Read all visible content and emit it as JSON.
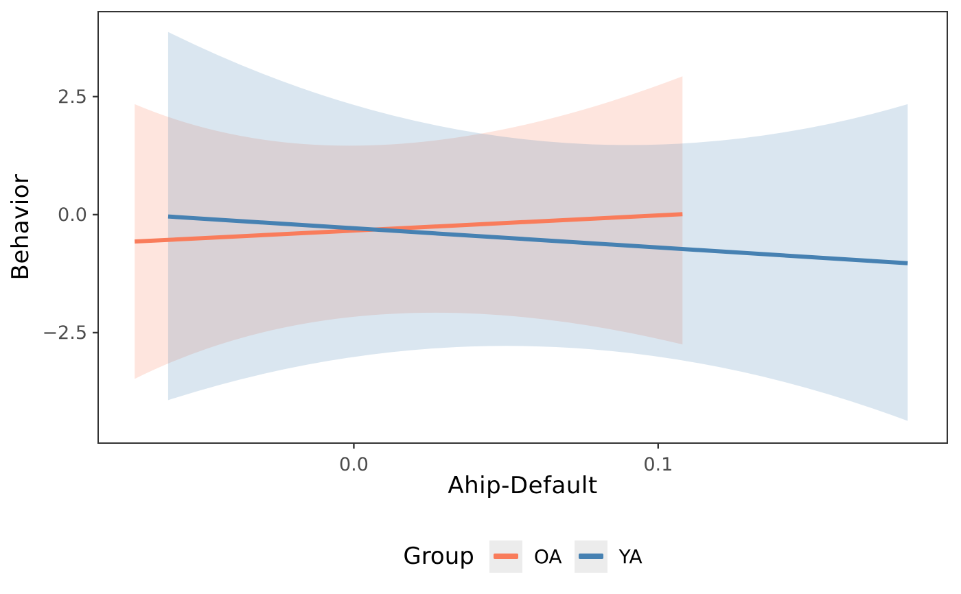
{
  "figure": {
    "background": "#FFFFFF",
    "panel_border_color": "#333333",
    "tick_color": "#333333",
    "tick_label_color": "#4D4D4D",
    "axis_title_color": "#000000",
    "legend_key_fill": "#ECECEC"
  },
  "chart_data": {
    "type": "line",
    "title": "",
    "xlabel": "Ahip-Default",
    "ylabel": "Behavior",
    "xlim": [
      -0.084,
      0.195
    ],
    "ylim": [
      -4.84,
      4.3
    ],
    "grid": false,
    "legend_position": "bottom",
    "xticks": {
      "values": [
        0.0,
        0.1
      ],
      "labels": [
        "0.0",
        "0.1"
      ]
    },
    "yticks": {
      "values": [
        -2.5,
        0.0,
        2.5
      ],
      "labels": [
        "−2.5",
        "0.0",
        "2.5"
      ]
    },
    "series": [
      {
        "name": "OA",
        "color": "#F97C5B",
        "fill_opacity": 0.2,
        "line": {
          "x": [
            -0.072,
            0.108
          ],
          "y": [
            -0.57,
            0.01
          ]
        },
        "ribbon": {
          "x": [
            -0.072,
            0.01,
            0.108
          ],
          "top": [
            2.34,
            1.48,
            2.93
          ],
          "bottom": [
            -3.48,
            -2.11,
            -2.75
          ]
        }
      },
      {
        "name": "YA",
        "color": "#4681B2",
        "fill_opacity": 0.2,
        "line": {
          "x": [
            -0.061,
            0.182
          ],
          "y": [
            -0.04,
            -1.03
          ]
        },
        "ribbon": {
          "x": [
            -0.061,
            0.06,
            0.182
          ],
          "top": [
            3.87,
            1.57,
            2.34
          ],
          "bottom": [
            -3.93,
            -2.79,
            -4.37
          ]
        }
      }
    ]
  },
  "legend": {
    "title": "Group",
    "items": [
      {
        "label": "OA",
        "color": "#F97C5B"
      },
      {
        "label": "YA",
        "color": "#4681B2"
      }
    ]
  }
}
